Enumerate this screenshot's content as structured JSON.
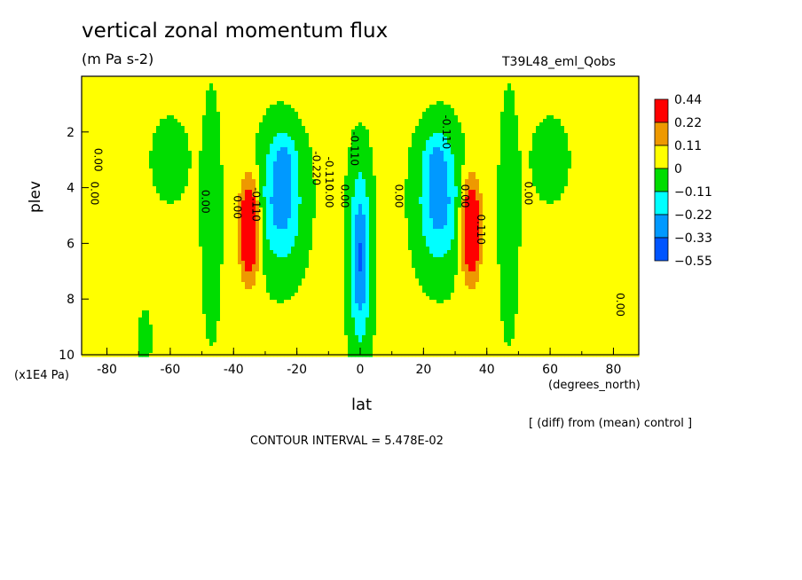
{
  "chart_data": {
    "type": "heatmap",
    "title": "vertical zonal momentum flux",
    "units": "(m Pa s-2)",
    "run_label": "T39L48_eml_Qobs",
    "xlabel": "lat",
    "x_units": "(degrees_north)",
    "ylabel": "plev",
    "y_units": "(x1E4 Pa)",
    "xlim": [
      -88,
      88
    ],
    "ylim": [
      0,
      10
    ],
    "x_ticks": [
      -80,
      -60,
      -40,
      -20,
      0,
      20,
      40,
      60,
      80
    ],
    "y_ticks": [
      2,
      4,
      6,
      8,
      10
    ],
    "diff_note": "[ (diff) from (mean) control ]",
    "contour_interval_note": "CONTOUR INTERVAL = 5.478E-02",
    "colorbar": {
      "labels": [
        "0.44",
        "0.22",
        "0.11",
        "0",
        "−0.11",
        "−0.22",
        "−0.33",
        "−0.55"
      ],
      "colors": [
        "#ff0000",
        "#ee9900",
        "#ffff00",
        "#00dd00",
        "#00ffff",
        "#0099ff",
        "#0055ff"
      ]
    },
    "contour_labels": [
      {
        "text": "0.00",
        "lat": -84,
        "plev": 3.0
      },
      {
        "text": "0.00",
        "lat": -85,
        "plev": 4.2
      },
      {
        "text": "0.00",
        "lat": -50,
        "plev": 4.5
      },
      {
        "text": "0.00",
        "lat": -40,
        "plev": 4.7
      },
      {
        "text": "-0.110",
        "lat": -34,
        "plev": 4.6
      },
      {
        "text": "-0.220",
        "lat": -15,
        "plev": 3.3
      },
      {
        "text": "-0.110",
        "lat": -11,
        "plev": 3.5
      },
      {
        "text": "0.00",
        "lat": -11,
        "plev": 4.3
      },
      {
        "text": "0.00",
        "lat": -6,
        "plev": 4.3
      },
      {
        "text": "-0.110",
        "lat": -3,
        "plev": 2.6
      },
      {
        "text": "0.00",
        "lat": 11,
        "plev": 4.3
      },
      {
        "text": "-0.110",
        "lat": 26,
        "plev": 2.0
      },
      {
        "text": "0.00",
        "lat": 32,
        "plev": 4.3
      },
      {
        "text": "0.110",
        "lat": 37,
        "plev": 5.5
      },
      {
        "text": "0.00",
        "lat": 52,
        "plev": 4.2
      },
      {
        "text": "0.00",
        "lat": 81,
        "plev": 8.2
      }
    ],
    "fields": {
      "background": 0.02,
      "lobes": [
        {
          "lat": -35,
          "plev": 5.5,
          "amp": 0.48,
          "sx": 3.0,
          "sy": 1.7
        },
        {
          "lat": 35,
          "plev": 5.5,
          "amp": 0.48,
          "sx": 3.0,
          "sy": 1.7
        },
        {
          "lat": -25,
          "plev": 4.5,
          "amp": -0.3,
          "sx": 6.5,
          "sy": 2.2
        },
        {
          "lat": 25,
          "plev": 4.5,
          "amp": -0.3,
          "sx": 6.5,
          "sy": 2.2
        },
        {
          "lat": -24,
          "plev": 2.8,
          "amp": -0.12,
          "sx": 4.0,
          "sy": 0.8
        },
        {
          "lat": 24,
          "plev": 2.8,
          "amp": -0.12,
          "sx": 4.0,
          "sy": 0.8
        },
        {
          "lat": 0,
          "plev": 6.5,
          "amp": -0.36,
          "sx": 3.2,
          "sy": 3.0
        },
        {
          "lat": -10,
          "plev": 8.0,
          "amp": 0.07,
          "sx": 3.0,
          "sy": 2.2
        },
        {
          "lat": 10,
          "plev": 8.0,
          "amp": 0.07,
          "sx": 3.0,
          "sy": 2.2
        },
        {
          "lat": -60,
          "plev": 3.0,
          "amp": -0.06,
          "sx": 6.0,
          "sy": 1.5
        },
        {
          "lat": 60,
          "plev": 3.0,
          "amp": -0.06,
          "sx": 6.0,
          "sy": 1.5
        },
        {
          "lat": -47,
          "plev": 5.0,
          "amp": -0.08,
          "sx": 3.0,
          "sy": 4.0
        },
        {
          "lat": 47,
          "plev": 5.0,
          "amp": -0.08,
          "sx": 3.0,
          "sy": 4.0
        },
        {
          "lat": -68,
          "plev": 9.4,
          "amp": -0.06,
          "sx": 2.0,
          "sy": 1.0
        },
        {
          "lat": 0,
          "plev": 0.6,
          "amp": 0.07,
          "sx": 14.0,
          "sy": 0.7
        }
      ]
    }
  }
}
